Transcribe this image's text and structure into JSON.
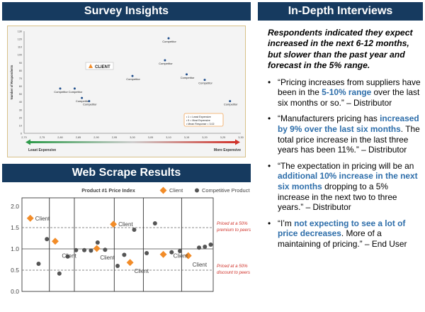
{
  "survey": {
    "title": "Survey Insights",
    "chart_data": {
      "type": "scatter",
      "title": "",
      "xlabel": "",
      "ylabel": "Number of Respondents",
      "xlim": [
        2.7,
        3.3
      ],
      "ylim": [
        0,
        130
      ],
      "x_ticks": [
        "2,70",
        "2,75",
        "2,80",
        "2,85",
        "2,90",
        "2,95",
        "3,00",
        "3,05",
        "3,10",
        "3,15",
        "3,20",
        "3,25",
        "3,30"
      ],
      "y_ticks": [
        "0",
        "10",
        "20",
        "30",
        "40",
        "50",
        "60",
        "70",
        "80",
        "90",
        "100",
        "110",
        "120",
        "130"
      ],
      "points": [
        {
          "x": 2.8,
          "y": 57,
          "label": "Competitor"
        },
        {
          "x": 2.84,
          "y": 57,
          "label": "Competitor"
        },
        {
          "x": 2.86,
          "y": 45,
          "label": "Competitor"
        },
        {
          "x": 2.88,
          "y": 41,
          "label": "Competitor"
        },
        {
          "x": 3.0,
          "y": 73,
          "label": "Competitor"
        },
        {
          "x": 3.09,
          "y": 93,
          "label": "Competitor"
        },
        {
          "x": 3.1,
          "y": 121,
          "label": "Competitor"
        },
        {
          "x": 3.15,
          "y": 75,
          "label": "Competitor"
        },
        {
          "x": 3.2,
          "y": 68,
          "label": "Competitor"
        },
        {
          "x": 3.27,
          "y": 41,
          "label": "Competitor"
        }
      ],
      "client_label": "CLIENT",
      "legend_box": [
        "1 = Least Expensive",
        "5 = Most Expensive",
        "Mean Response = 3.02"
      ],
      "arrow_left": "Least Expensive",
      "arrow_right": "More Expensive"
    }
  },
  "webscrape": {
    "title": "Web Scrape Results",
    "chart_data": {
      "type": "scatter",
      "title": "Product #1 Price Index",
      "xlabel": "",
      "ylabel": "",
      "ylim": [
        0,
        2.0
      ],
      "y_ticks": [
        "0.0",
        "0.5",
        "1.0",
        "1.5",
        "2.0"
      ],
      "series": [
        {
          "name": "Client",
          "color": "#f28c28",
          "marker": "diamond",
          "points": [
            [
              1,
              1.72
            ],
            [
              4,
              1.18
            ],
            [
              9,
              1.01
            ],
            [
              11,
              1.58
            ],
            [
              13,
              0.68
            ],
            [
              17,
              0.87
            ],
            [
              20,
              0.84
            ]
          ]
        },
        {
          "name": "Competitive Product",
          "color": "#555555",
          "marker": "circle",
          "points": [
            [
              2,
              0.65
            ],
            [
              3,
              1.23
            ],
            [
              4.5,
              0.42
            ],
            [
              5.5,
              0.82
            ],
            [
              6.5,
              0.97
            ],
            [
              7.5,
              0.97
            ],
            [
              8.3,
              0.96
            ],
            [
              9.1,
              1.15
            ],
            [
              10,
              0.98
            ],
            [
              11.5,
              0.6
            ],
            [
              12.3,
              0.86
            ],
            [
              13.5,
              1.45
            ],
            [
              15,
              0.9
            ],
            [
              16,
              1.6
            ],
            [
              18,
              0.92
            ],
            [
              19,
              0.95
            ],
            [
              21.3,
              1.03
            ],
            [
              22,
              1.05
            ],
            [
              22.7,
              1.1
            ]
          ]
        }
      ],
      "client_labels": [
        {
          "x": 1.6,
          "y": 1.72,
          "text": "Client"
        },
        {
          "x": 4.8,
          "y": 0.84,
          "text": "Client"
        },
        {
          "x": 9.4,
          "y": 0.8,
          "text": "Client"
        },
        {
          "x": 11.6,
          "y": 1.58,
          "text": "Client"
        },
        {
          "x": 13.5,
          "y": 0.48,
          "text": "Client"
        },
        {
          "x": 18.2,
          "y": 0.84,
          "text": "Client"
        },
        {
          "x": 20.5,
          "y": 0.63,
          "text": "Client"
        }
      ],
      "group_lines": [
        3.3,
        6.3,
        11.1,
        14.6,
        19.2
      ],
      "x_max": 23,
      "premium_line": 1.5,
      "discount_line": 0.5,
      "premium_note": [
        "Priced at a 50%",
        "premium to peers"
      ],
      "discount_note": [
        "Priced at a 50%",
        "discount to peers"
      ]
    }
  },
  "interviews": {
    "title": "In-Depth Interviews",
    "lead": "Respondents indicated they expect increased in the next 6-12 months, but slower than the past year and forecast in the 5% range.",
    "bullet_char": "•",
    "quotes": [
      {
        "before": "“Pricing increases from suppliers have been in the ",
        "highlight": "5-10% range",
        "after": " over the last six months or so.” – Distributor"
      },
      {
        "before": "“Manufacturers pricing has ",
        "highlight": "increased by 9% over the last six months",
        "after": ". The total price increase in the last three years has been 11%.” – Distributor"
      },
      {
        "before": "“The expectation in pricing will be an ",
        "highlight": "additional 10% increase in the next six months",
        "after": " dropping to a 5% increase in the next two to three years.” – Distributor"
      },
      {
        "before": "“I’m ",
        "highlight": "not expecting to see a lot of price decreases",
        "after": ". More of a maintaining of pricing.” – End User"
      }
    ]
  }
}
